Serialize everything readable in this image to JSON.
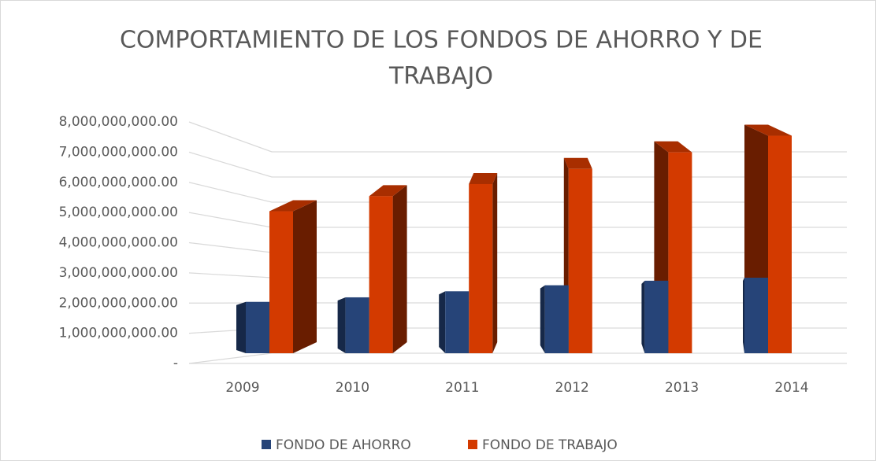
{
  "chart_data": {
    "type": "bar3d",
    "title": [
      "COMPORTAMIENTO DE LOS FONDOS DE AHORRO Y DE",
      "TRABAJO"
    ],
    "categories": [
      "2009",
      "2010",
      "2011",
      "2012",
      "2013",
      "2014"
    ],
    "series": [
      {
        "name": "FONDO DE AHORRO",
        "color": "#264478",
        "values": [
          1700000000,
          1850000000,
          2050000000,
          2250000000,
          2400000000,
          2500000000
        ]
      },
      {
        "name": "FONDO DE TRABAJO",
        "color": "#d33a00",
        "values": [
          4700000000,
          5200000000,
          5600000000,
          6100000000,
          6650000000,
          7200000000
        ]
      }
    ],
    "ylim": [
      0,
      8000000000
    ],
    "yticks": [
      {
        "value": 0,
        "label": "-"
      },
      {
        "value": 1000000000,
        "label": "1,000,000,000.00"
      },
      {
        "value": 2000000000,
        "label": "2,000,000,000.00"
      },
      {
        "value": 3000000000,
        "label": "3,000,000,000.00"
      },
      {
        "value": 4000000000,
        "label": "4,000,000,000.00"
      },
      {
        "value": 5000000000,
        "label": "5,000,000,000.00"
      },
      {
        "value": 6000000000,
        "label": "6,000,000,000.00"
      },
      {
        "value": 7000000000,
        "label": "7,000,000,000.00"
      },
      {
        "value": 8000000000,
        "label": "8,000,000,000.00"
      }
    ],
    "grid": true,
    "legend": "bottom"
  }
}
